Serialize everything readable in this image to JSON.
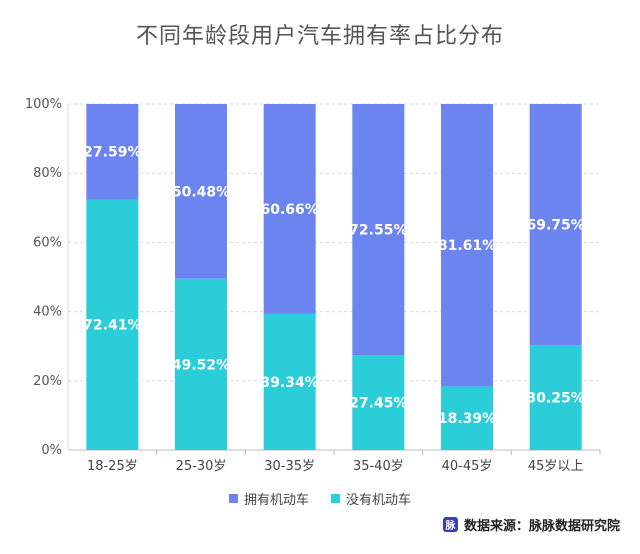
{
  "chart_data": {
    "type": "bar",
    "stacked": true,
    "title": "不同年龄段用户汽车拥有率占比分布",
    "categories": [
      "18-25岁",
      "25-30岁",
      "30-35岁",
      "35-40岁",
      "40-45岁",
      "45岁以上"
    ],
    "series": [
      {
        "name": "没有机动车",
        "color": "#2bcdd8",
        "values": [
          72.41,
          49.52,
          39.34,
          27.45,
          18.39,
          30.25
        ],
        "labels": [
          "72.41%",
          "49.52%",
          "39.34%",
          "27.45%",
          "18.39%",
          "30.25%"
        ]
      },
      {
        "name": "拥有机动车",
        "color": "#6b84ef",
        "values": [
          27.59,
          50.48,
          60.66,
          72.55,
          81.61,
          69.75
        ],
        "labels": [
          "27.59%",
          "50.48%",
          "60.66%",
          "72.55%",
          "81.61%",
          "69.75%"
        ]
      }
    ],
    "yticks": [
      "0%",
      "20%",
      "40%",
      "60%",
      "80%",
      "100%"
    ],
    "ylim": [
      0,
      100
    ],
    "grid": true,
    "legend_position": "bottom"
  },
  "legend": [
    {
      "label": "拥有机动车",
      "color": "#6b84ef"
    },
    {
      "label": "没有机动车",
      "color": "#2bcdd8"
    }
  ],
  "source": {
    "logo": "脉",
    "text": "数据来源：脉脉数据研究院"
  }
}
